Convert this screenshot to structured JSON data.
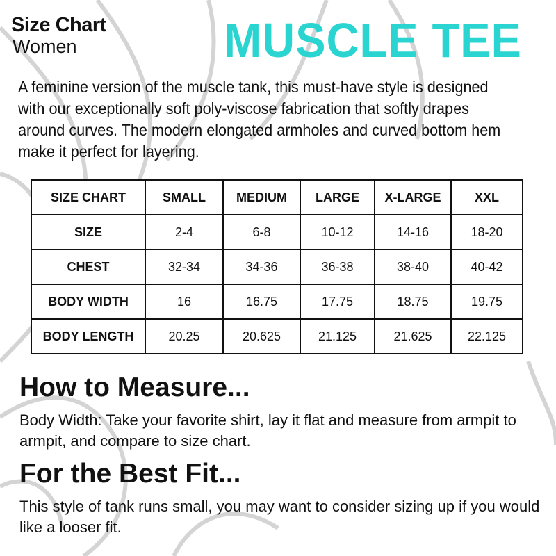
{
  "header": {
    "title": "Size Chart",
    "subtitle": "Women",
    "product": "MUSCLE TEE",
    "accent_color": "#2ad4d0"
  },
  "description": "A feminine version of the muscle tank, this must-have style is designed with our exceptionally soft poly-viscose fabrication that softly drapes around curves. The modern elongated armholes and curved bottom hem make it perfect for layering.",
  "table": {
    "headers": [
      "SIZE CHART",
      "SMALL",
      "MEDIUM",
      "LARGE",
      "X-LARGE",
      "XXL"
    ],
    "rows": [
      [
        "SIZE",
        "2-4",
        "6-8",
        "10-12",
        "14-16",
        "18-20"
      ],
      [
        "CHEST",
        "32-34",
        "34-36",
        "36-38",
        "38-40",
        "40-42"
      ],
      [
        "BODY WIDTH",
        "16",
        "16.75",
        "17.75",
        "18.75",
        "19.75"
      ],
      [
        "BODY LENGTH",
        "20.25",
        "20.625",
        "21.125",
        "21.625",
        "22.125"
      ]
    ]
  },
  "measure": {
    "heading": "How to Measure...",
    "text": "Body Width: Take your favorite shirt, lay it flat and measure from armpit to armpit, and compare to size chart."
  },
  "fit": {
    "heading": "For the Best Fit...",
    "text": "This style of tank runs small, you may want to consider sizing up if you would like a looser fit."
  }
}
